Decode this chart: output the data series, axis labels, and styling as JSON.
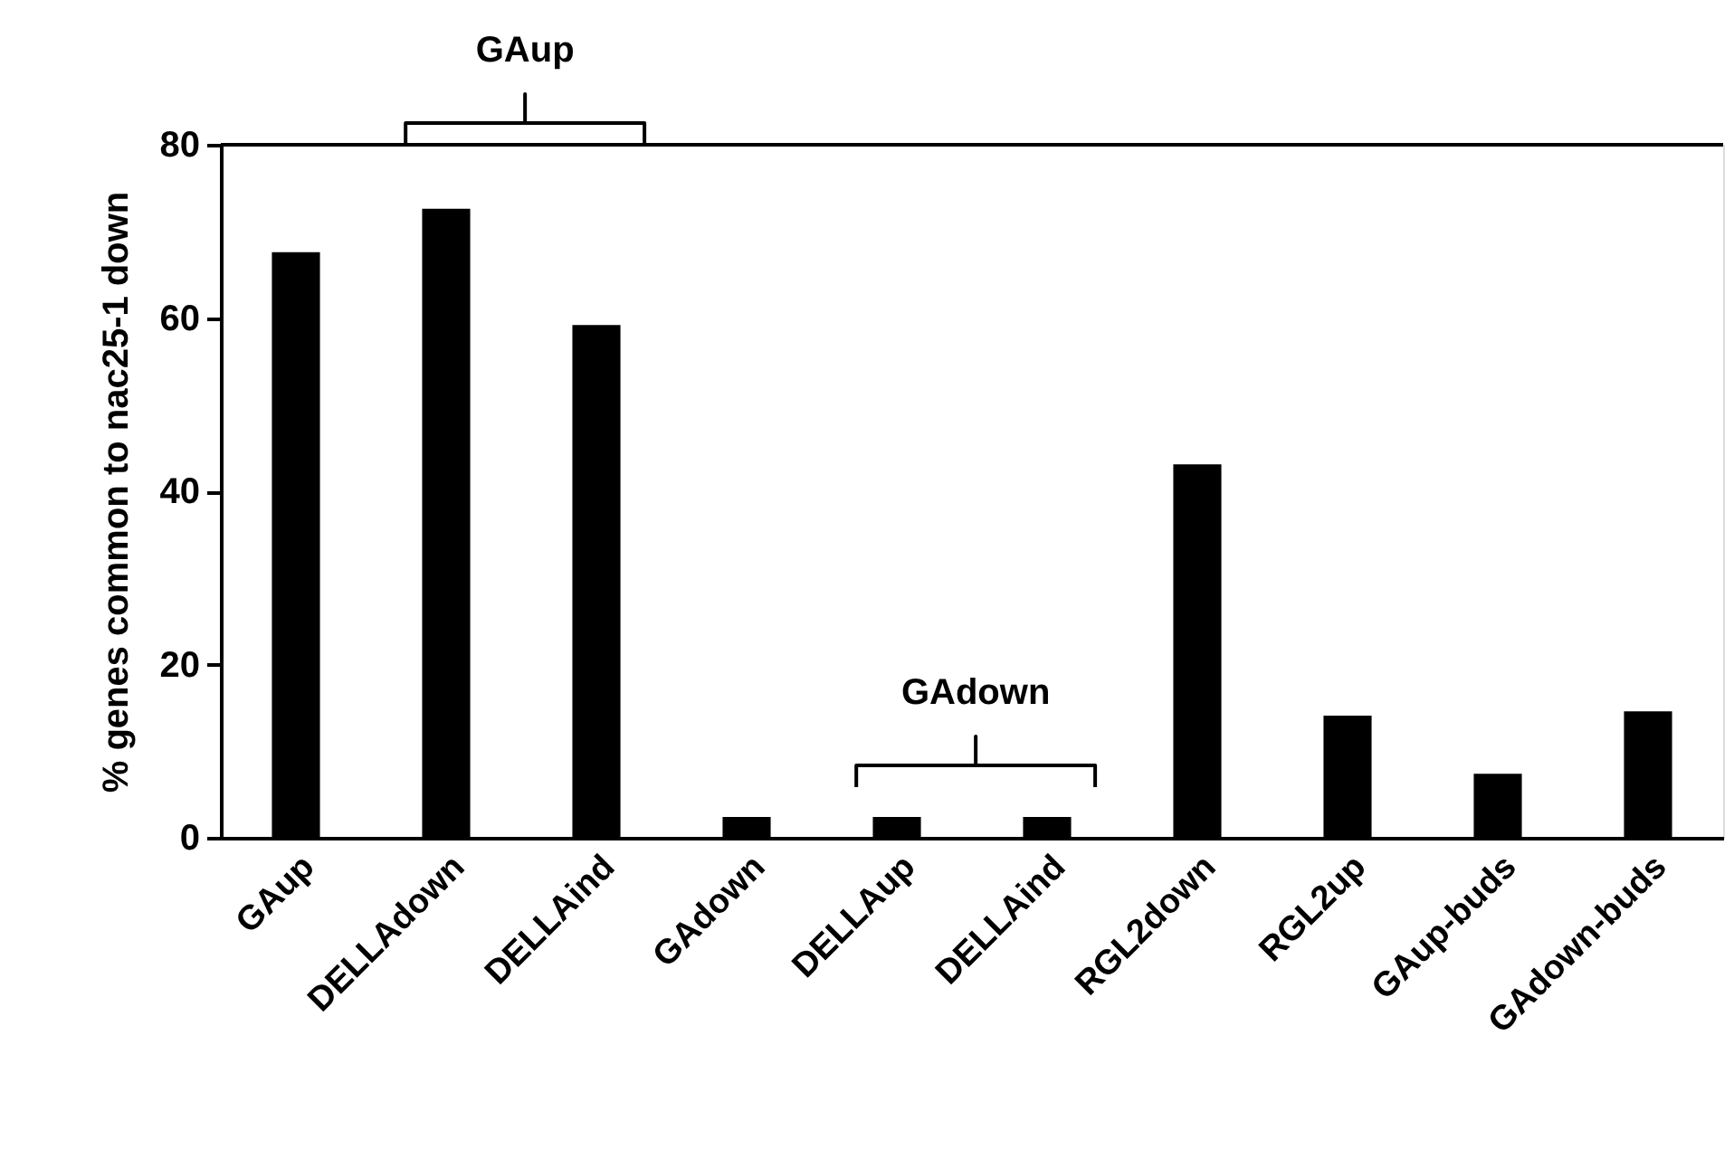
{
  "chart_data": {
    "type": "bar",
    "ylabel": "% genes common to nac25-1 down",
    "categories": [
      "GAup",
      "DELLAdown",
      "DELLAind",
      "GAdown",
      "DELLAup",
      "DELLAind",
      "RGL2down",
      "RGL2up",
      "GAup-buds",
      "GAdown-buds"
    ],
    "values": [
      67.6,
      72.6,
      59.2,
      2.4,
      2.4,
      2.4,
      43.1,
      14.1,
      7.4,
      14.6
    ],
    "color": "#000000",
    "ylim": [
      0,
      80
    ],
    "yticks": [
      0,
      20,
      40,
      60,
      80
    ],
    "grid": false,
    "ref_lines": [
      {
        "axis": "y",
        "value": 80,
        "color": "#000000"
      }
    ],
    "annotations": [
      "GAup",
      "GAdown"
    ]
  }
}
